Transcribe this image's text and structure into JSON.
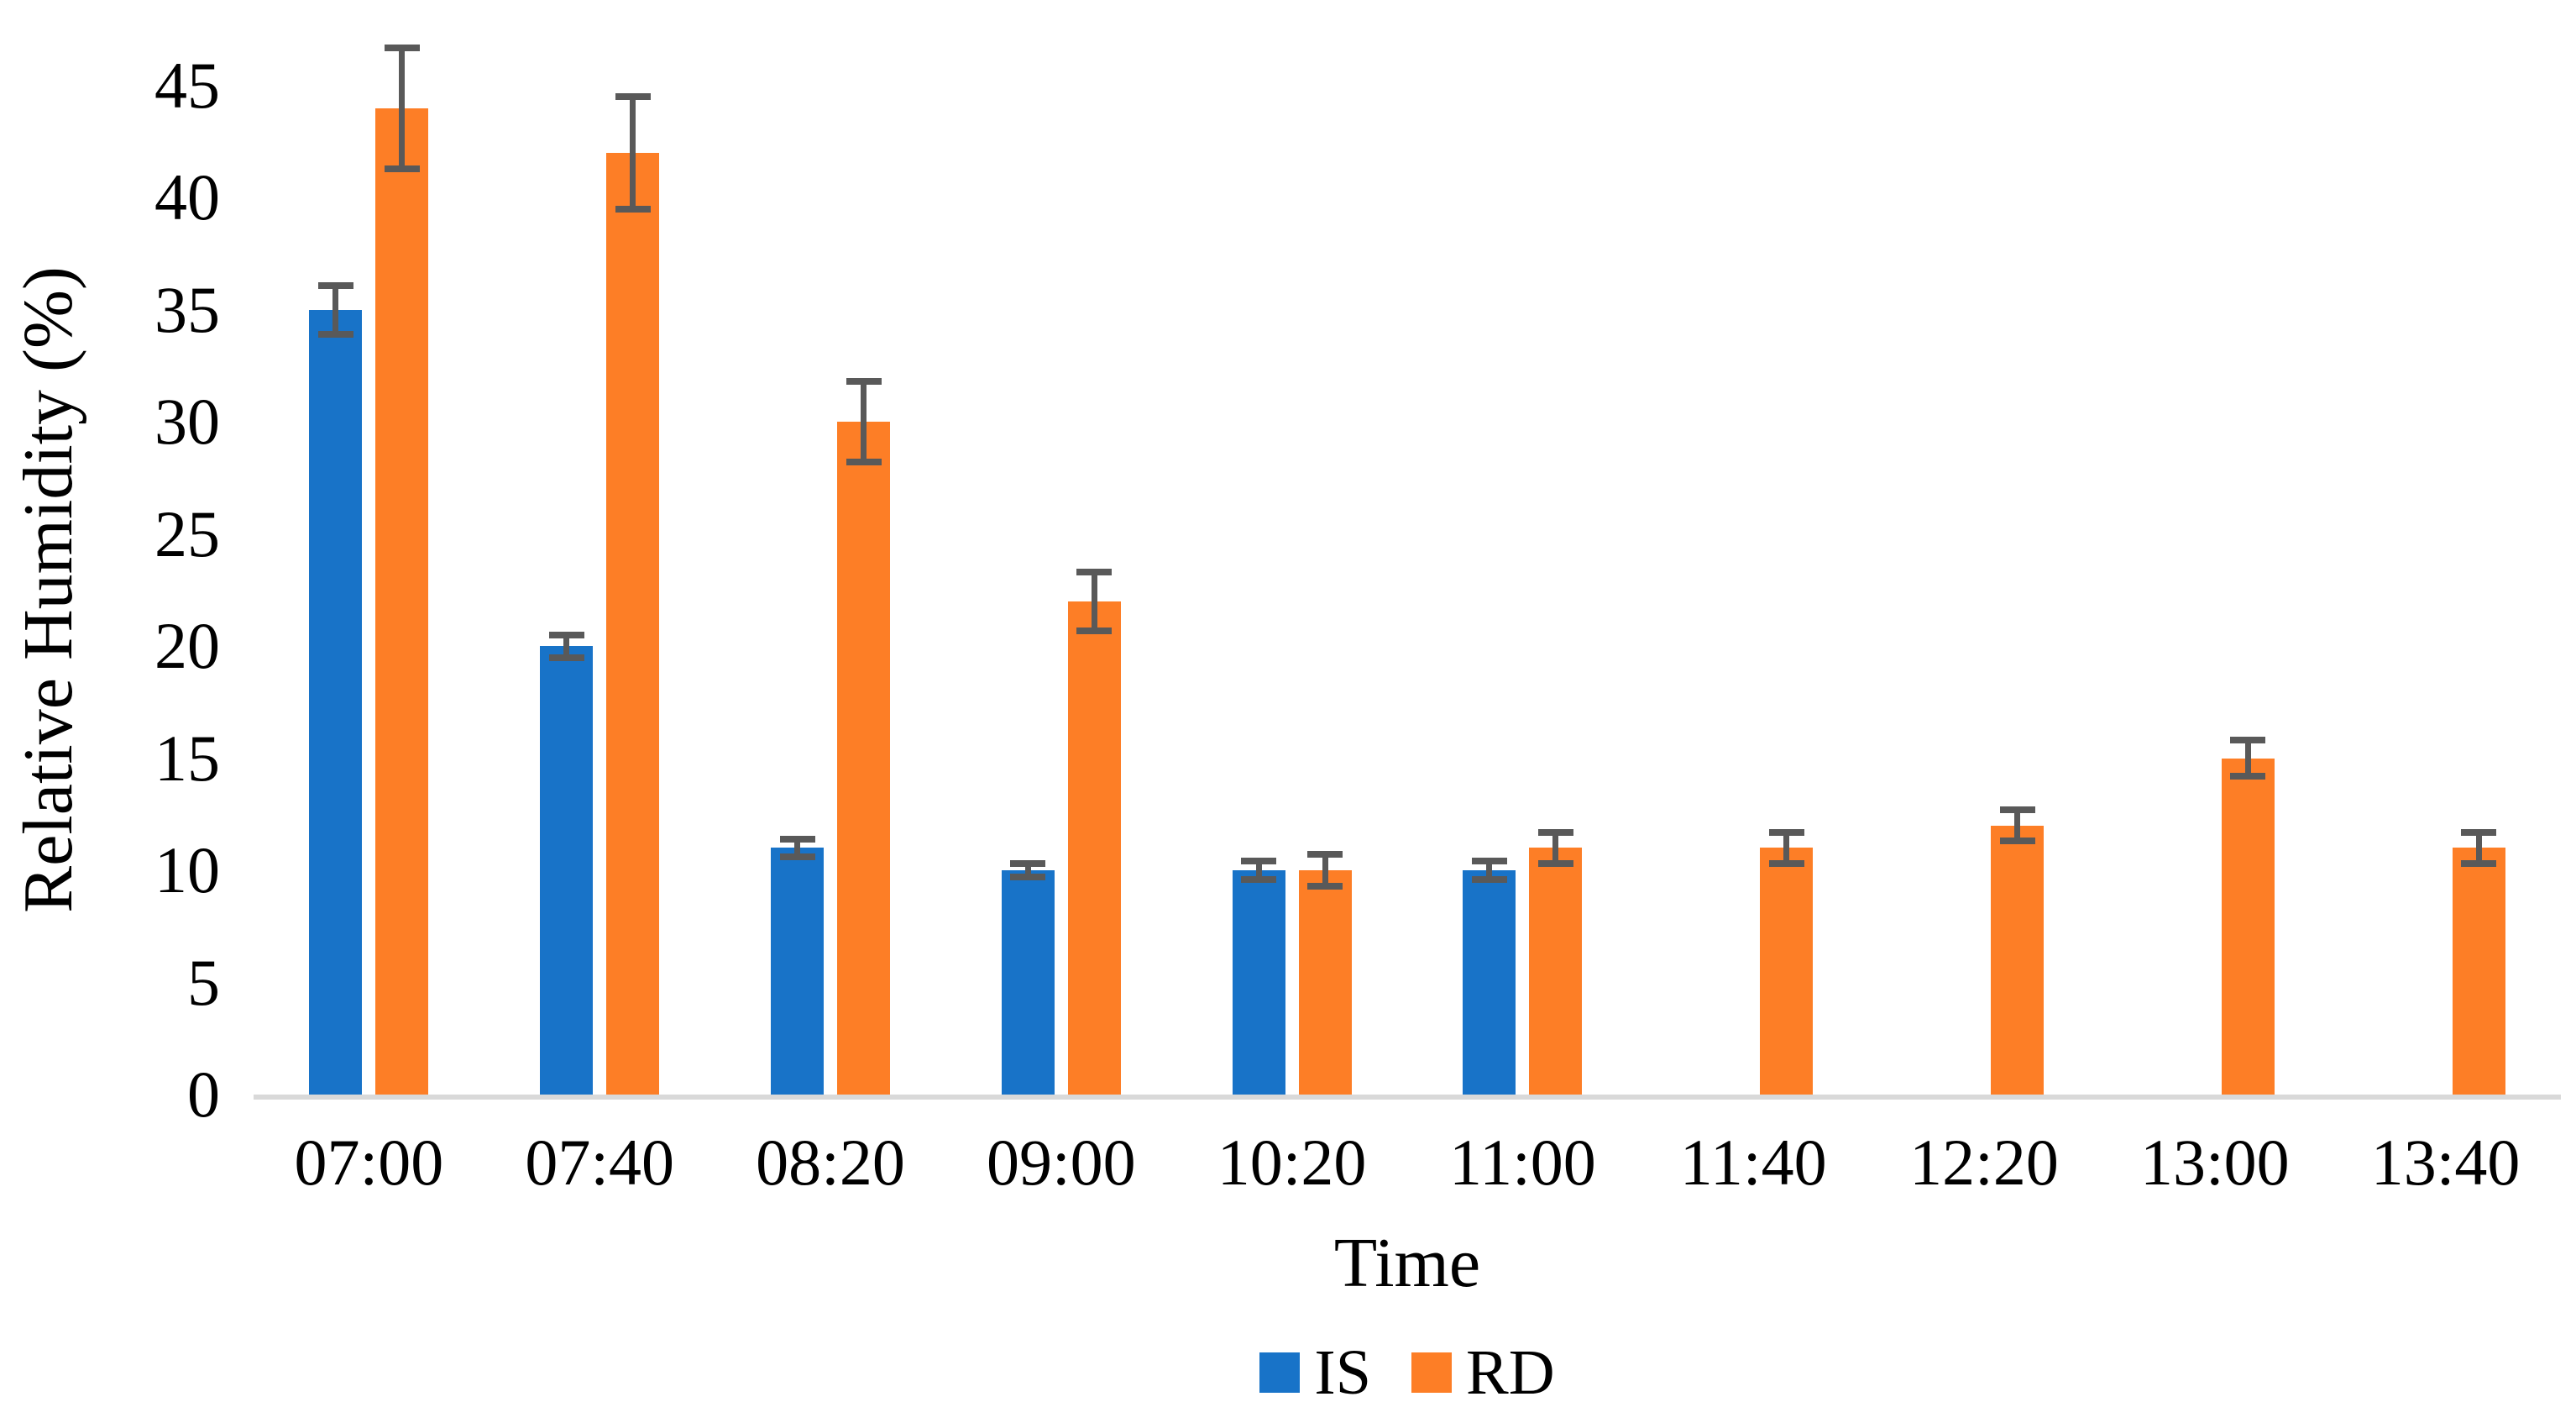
{
  "chart_data": {
    "type": "bar",
    "title": "",
    "xlabel": "Time",
    "ylabel": "Relative Humidity (%)",
    "categories": [
      "07:00",
      "07:40",
      "08:20",
      "09:00",
      "10:20",
      "11:00",
      "11:40",
      "12:20",
      "13:00",
      "13:40"
    ],
    "series": [
      {
        "name": "IS",
        "color": "#1873C8",
        "values": [
          35,
          20,
          11,
          10,
          10,
          10,
          null,
          null,
          null,
          null
        ],
        "errors": [
          1.1,
          0.5,
          0.4,
          0.3,
          0.4,
          0.4,
          null,
          null,
          null,
          null
        ]
      },
      {
        "name": "RD",
        "color": "#FD7E26",
        "values": [
          44,
          42,
          30,
          22,
          10,
          11,
          11,
          12,
          15,
          11
        ],
        "errors": [
          2.7,
          2.5,
          1.8,
          1.3,
          0.7,
          0.7,
          0.7,
          0.7,
          0.8,
          0.7
        ]
      }
    ],
    "y_ticks": [
      0,
      5,
      10,
      15,
      20,
      25,
      30,
      35,
      40,
      45
    ],
    "ylim": [
      0,
      45
    ],
    "grid": false,
    "legend_position": "bottom",
    "error_bar_color": "#595959",
    "axis_line_color": "#D9D9D9",
    "background_color": "#FFFFFF"
  }
}
